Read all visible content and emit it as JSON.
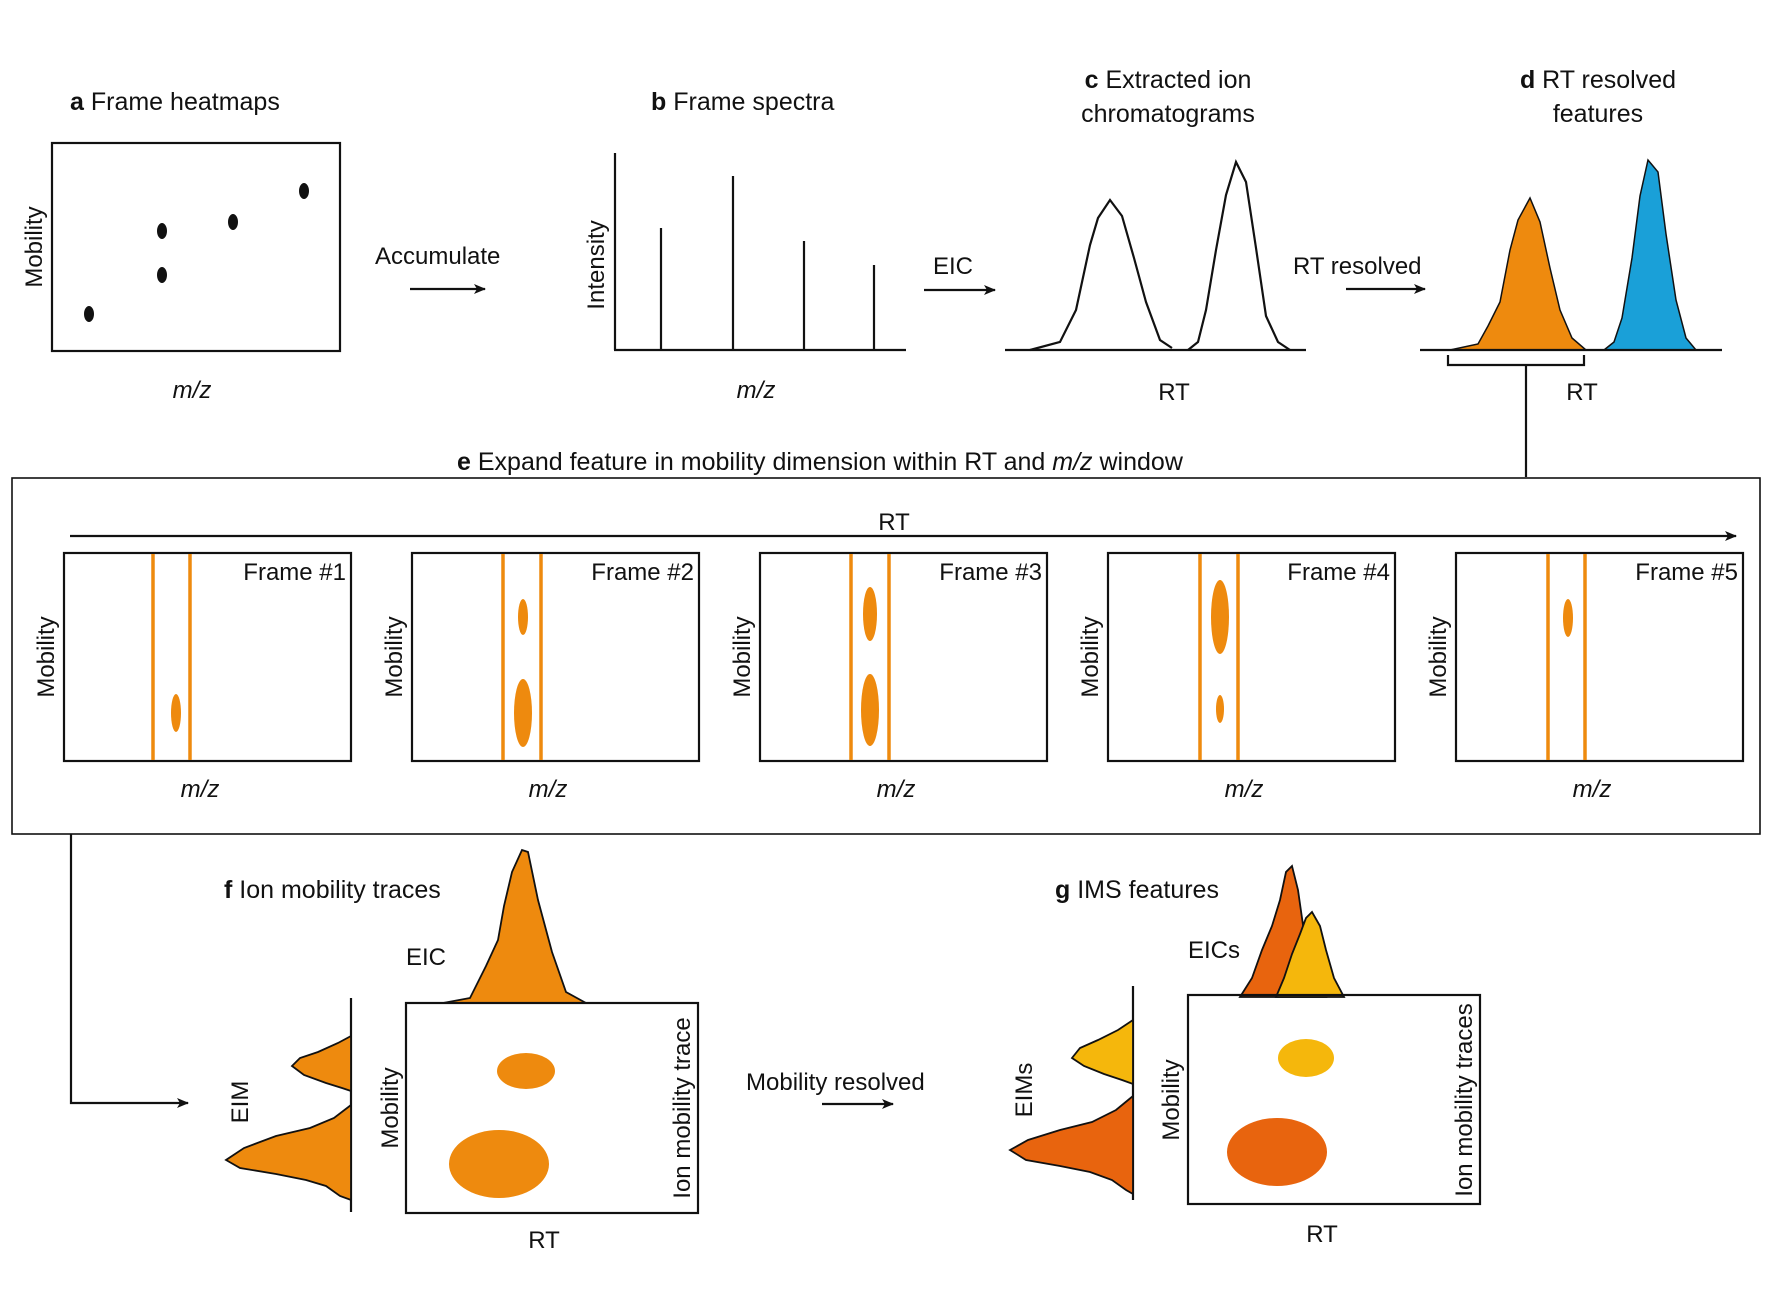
{
  "colors": {
    "orange": "#EE8A0E",
    "blue": "#1AA0D8",
    "dark_orange": "#E8640E",
    "yellow": "#F5B70C",
    "black": "#111111"
  },
  "panel_a": {
    "letter": "a",
    "title": "Frame heatmaps",
    "y_label": "Mobility",
    "x_label": "m/z"
  },
  "arrow_ab": {
    "label": "Accumulate"
  },
  "panel_b": {
    "letter": "b",
    "title": "Frame spectra",
    "y_label": "Intensity",
    "x_label": "m/z"
  },
  "arrow_bc": {
    "label": "EIC"
  },
  "panel_c": {
    "letter": "c",
    "title_line1": "Extracted ion",
    "title_line2": "chromatograms",
    "x_label": "RT"
  },
  "arrow_cd": {
    "label": "RT resolved"
  },
  "panel_d": {
    "letter": "d",
    "title_line1": "RT resolved",
    "title_line2": "features",
    "x_label": "RT"
  },
  "panel_e": {
    "letter": "e",
    "title_pre": "Expand feature in mobility dimension within RT and",
    "title_mz": "m/z",
    "title_post": "window",
    "rt_label": "RT",
    "frames": [
      {
        "label": "Frame #1",
        "y_label": "Mobility",
        "x_label": "m/z"
      },
      {
        "label": "Frame #2",
        "y_label": "Mobility",
        "x_label": "m/z"
      },
      {
        "label": "Frame #3",
        "y_label": "Mobility",
        "x_label": "m/z"
      },
      {
        "label": "Frame #4",
        "y_label": "Mobility",
        "x_label": "m/z"
      },
      {
        "label": "Frame #5",
        "y_label": "Mobility",
        "x_label": "m/z"
      }
    ]
  },
  "panel_f": {
    "letter": "f",
    "title": "Ion mobility traces",
    "eic_label": "EIC",
    "eim_label": "EIM",
    "y_label": "Mobility",
    "x_label": "RT",
    "right_label": "Ion mobility trace"
  },
  "arrow_fg": {
    "label": "Mobility resolved"
  },
  "panel_g": {
    "letter": "g",
    "title": "IMS features",
    "eic_label": "EICs",
    "eim_label": "EIMs",
    "y_label": "Mobility",
    "x_label": "RT",
    "right_label": "Ion mobility traces"
  }
}
